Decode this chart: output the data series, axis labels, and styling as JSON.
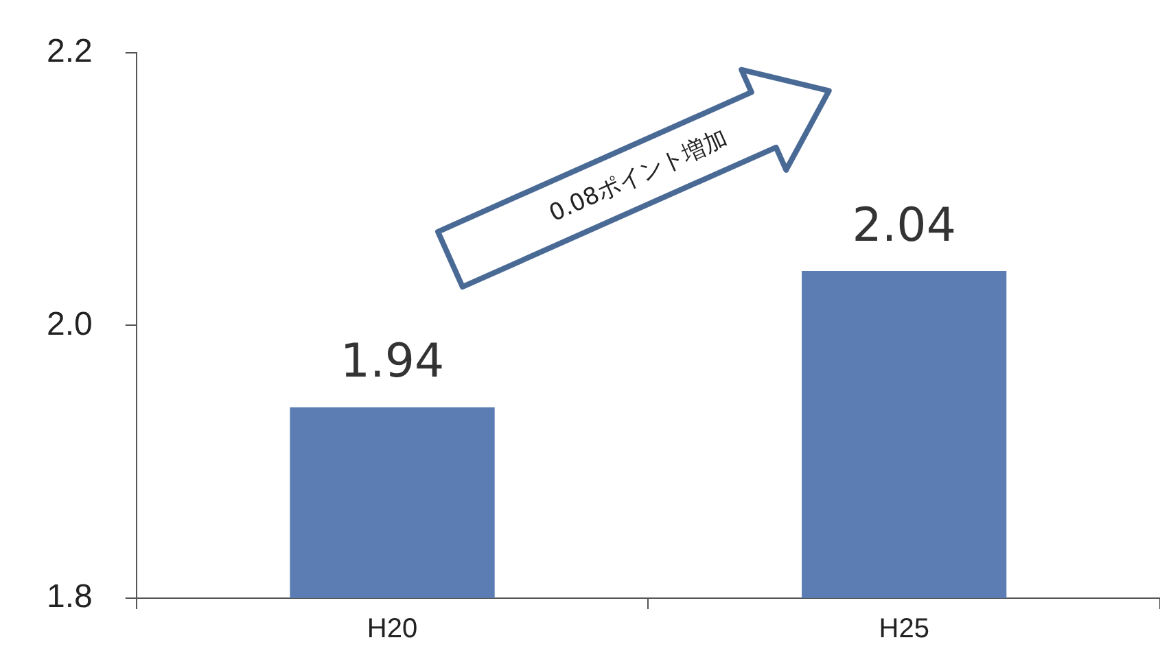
{
  "chart_data": {
    "type": "bar",
    "categories": [
      "H20",
      "H25"
    ],
    "values": [
      1.94,
      2.04
    ],
    "color": "#5b7db3",
    "ylim": [
      1.8,
      2.2
    ],
    "yticks": [
      1.8,
      {
        "value": 2.0,
        "label": "2.0"
      },
      2.2
    ],
    "data_labels": true,
    "annotations": [
      "0.08ポイント増加"
    ]
  }
}
